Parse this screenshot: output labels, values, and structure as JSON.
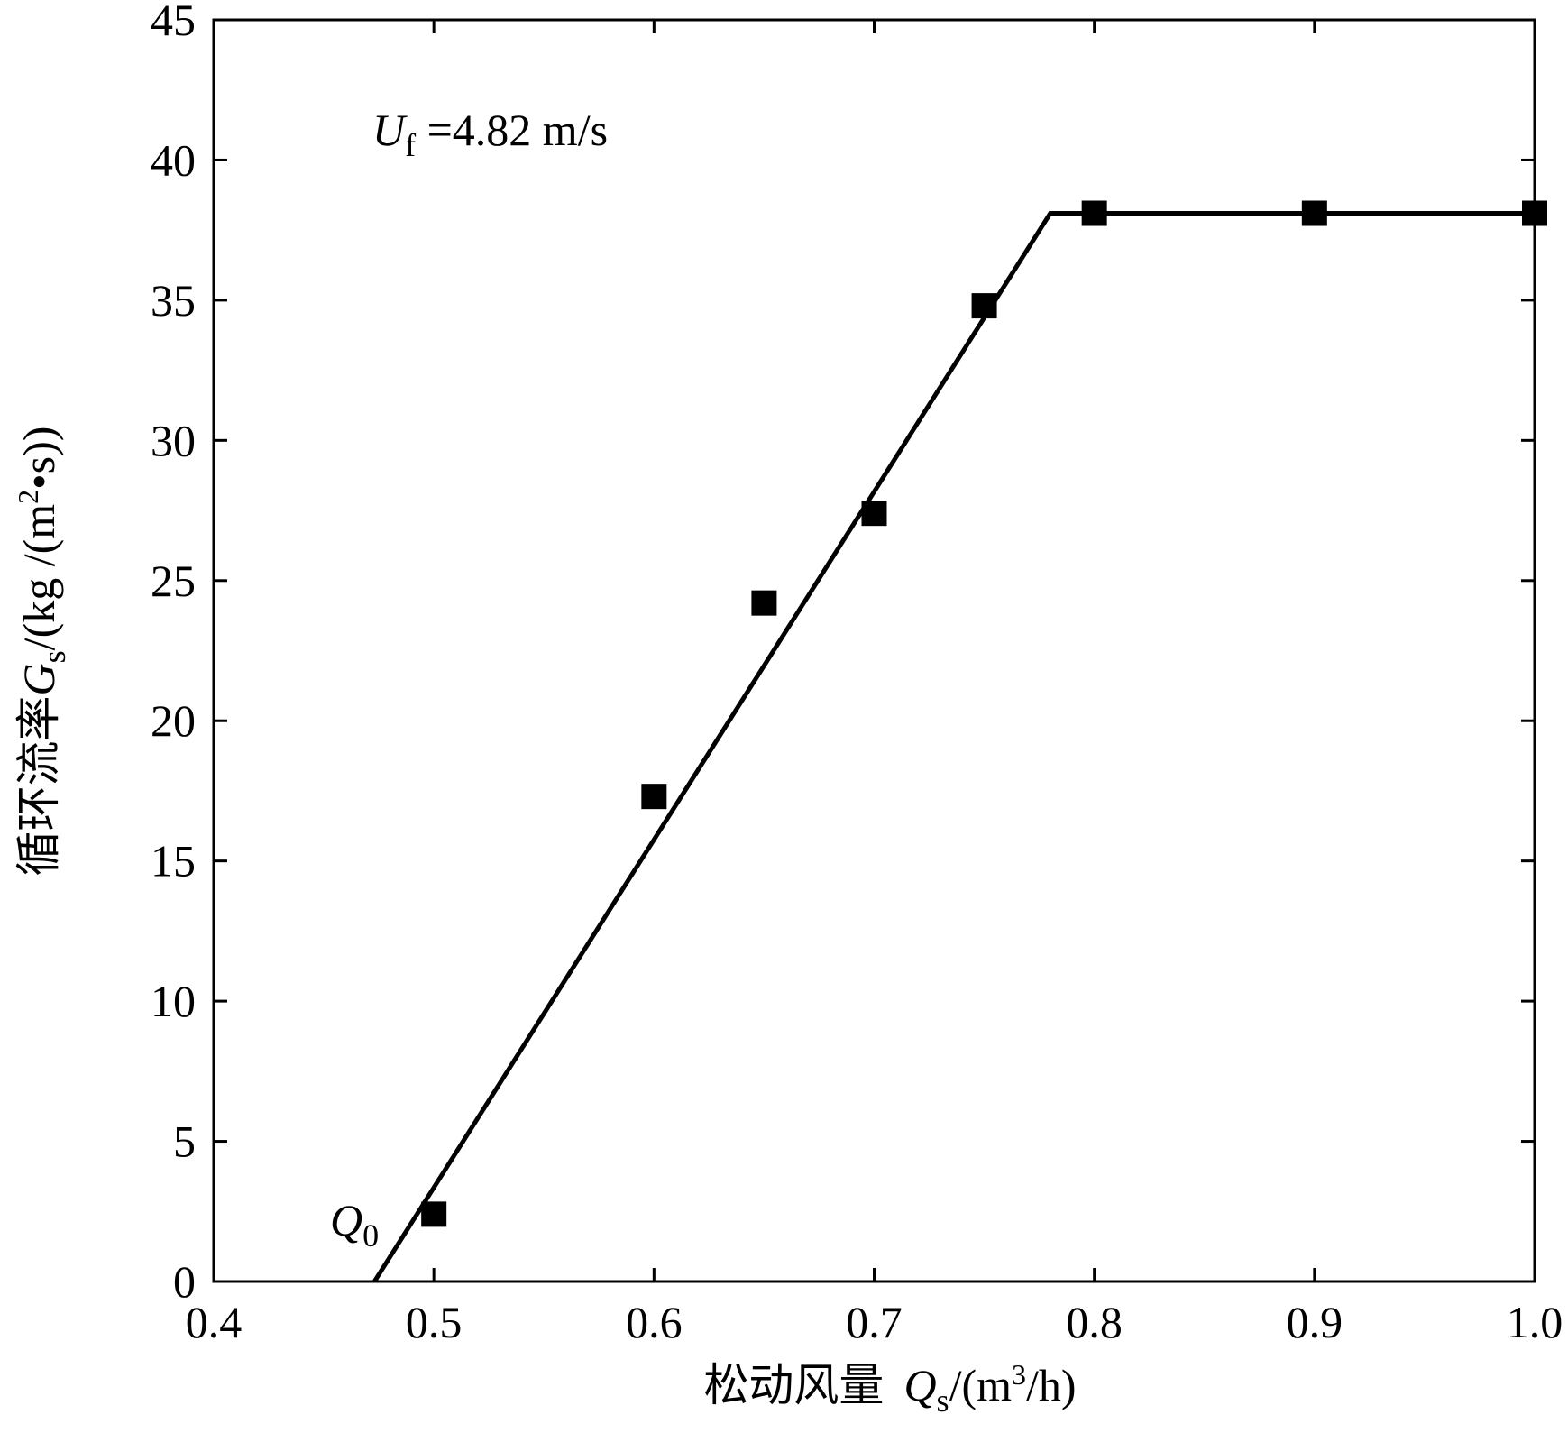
{
  "chart_data": {
    "type": "scatter",
    "x": [
      0.5,
      0.6,
      0.65,
      0.7,
      0.75,
      0.8,
      0.9,
      1.0
    ],
    "y": [
      2.4,
      17.3,
      24.2,
      27.4,
      34.8,
      38.1,
      38.1,
      38.1
    ],
    "fit_line": {
      "x": [
        0.473,
        0.78,
        1.0
      ],
      "y": [
        0,
        38.1,
        38.1
      ]
    },
    "xlim": [
      0.4,
      1.0
    ],
    "ylim": [
      0,
      45
    ],
    "x_ticks": [
      "0.4",
      "0.5",
      "0.6",
      "0.7",
      "0.8",
      "0.9",
      "1.0"
    ],
    "y_ticks": [
      "0",
      "5",
      "10",
      "15",
      "20",
      "25",
      "30",
      "35",
      "40",
      "45"
    ],
    "xlabel": {
      "cn": "松动风量",
      "sym": "Q",
      "sub": "s",
      "unit_pre": "/(m",
      "sup": "3",
      "unit_post": "/h)"
    },
    "ylabel": {
      "cn": "循环流率",
      "sym": "G",
      "sub": "s",
      "unit_pre": "/(kg /(m",
      "sup": "2",
      "unit_post": "•s))"
    },
    "annotations": {
      "velocity": {
        "sym": "U",
        "sub": "f",
        "text": " =4.82 m/s"
      },
      "q0": {
        "sym": "Q",
        "sub": "0"
      }
    },
    "grid": false,
    "legend": "none",
    "marker_color": "#000000",
    "line_color": "#000000"
  }
}
